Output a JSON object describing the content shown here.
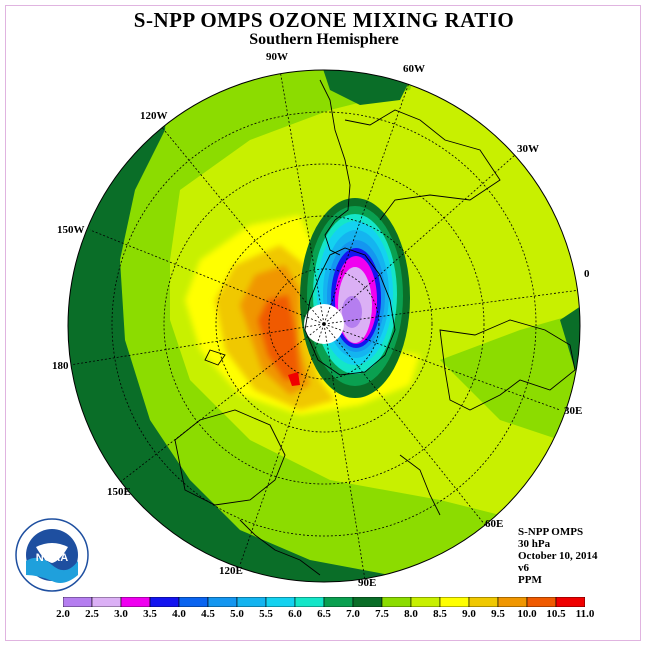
{
  "title": "S-NPP OMPS OZONE MIXING RATIO",
  "subtitle": "Southern Hemisphere",
  "longitude_labels": {
    "w90": "90W",
    "w60": "60W",
    "w30": "30W",
    "w120": "120W",
    "w150": "150W",
    "e0": "0",
    "w180": "180",
    "e30": "30E",
    "e60": "60E",
    "e90": "90E",
    "e120": "120E",
    "e150": "150E"
  },
  "info": {
    "instrument": "S-NPP OMPS",
    "level": "30 hPa",
    "date": "October 10, 2014",
    "version": "v6",
    "units": "PPM"
  },
  "logo_text": "NOAA",
  "colorbar": {
    "ticks": [
      "2.0",
      "2.5",
      "3.0",
      "3.5",
      "4.0",
      "4.5",
      "5.0",
      "5.5",
      "6.0",
      "6.5",
      "7.0",
      "7.5",
      "8.0",
      "8.5",
      "9.0",
      "9.5",
      "10.0",
      "10.5",
      "11.0"
    ],
    "colors": [
      "#b57ef0",
      "#dbb0f5",
      "#f000f0",
      "#1414f0",
      "#0a64f0",
      "#1496f0",
      "#14b4f0",
      "#14d2f0",
      "#14e6c8",
      "#0aa050",
      "#0a6e28",
      "#8cdc00",
      "#c8f000",
      "#ffff00",
      "#f0c800",
      "#f09600",
      "#f05a00",
      "#f00000",
      "#8c5a3c"
    ]
  }
}
